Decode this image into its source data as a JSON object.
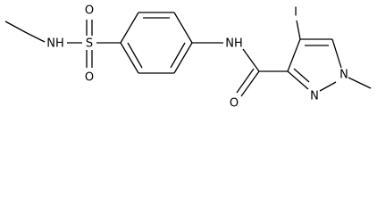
{
  "labels": [
    "NH",
    "S",
    "O",
    "O",
    "NH",
    "O",
    "N",
    "N",
    "I"
  ]
}
